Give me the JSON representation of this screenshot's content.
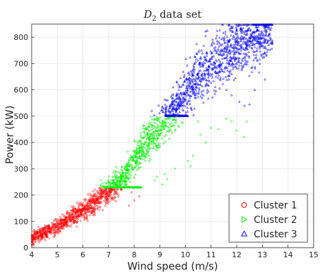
{
  "chart_data": {
    "type": "scatter",
    "title": "D2 data set",
    "title_main": "D",
    "title_sub": "2",
    "title_rest": " data set",
    "xlabel": "Wind speed (m/s)",
    "ylabel": "Power (kW)",
    "xlim": [
      4,
      15
    ],
    "ylim": [
      0,
      850
    ],
    "xticks": [
      4,
      5,
      6,
      7,
      8,
      9,
      10,
      11,
      12,
      13,
      14,
      15
    ],
    "yticks": [
      0,
      100,
      200,
      300,
      400,
      500,
      600,
      700,
      800
    ],
    "grid": true,
    "legend_position": "bottom-right",
    "power_curve_approx": {
      "x": [
        4.0,
        5.0,
        6.0,
        7.0,
        7.5,
        8.0,
        8.5,
        9.0,
        9.5,
        10.0,
        11.0,
        12.0,
        13.0,
        13.4
      ],
      "y": [
        35,
        80,
        140,
        215,
        260,
        330,
        400,
        455,
        520,
        590,
        700,
        770,
        825,
        840
      ]
    },
    "series": [
      {
        "name": "Cluster 1",
        "marker": "circle",
        "color": "#ff0000",
        "x_range": [
          4,
          8.3
        ],
        "y_range": [
          0,
          228
        ],
        "outliers": [
          [
            7.9,
            210
          ],
          [
            8.2,
            195
          ],
          [
            8.0,
            180
          ],
          [
            7.8,
            160
          ]
        ]
      },
      {
        "name": "Cluster 2",
        "marker": "triangle-right",
        "color": "#00ee00",
        "x_range": [
          6.8,
          10.2
        ],
        "y_range": [
          228,
          500
        ],
        "outliers": [
          [
            8.8,
            255
          ],
          [
            9.1,
            240
          ],
          [
            9.2,
            280
          ],
          [
            9.6,
            300
          ],
          [
            9.3,
            260
          ],
          [
            8.9,
            270
          ],
          [
            10.1,
            330
          ],
          [
            10.2,
            310
          ],
          [
            11.3,
            450
          ],
          [
            11.6,
            490
          ],
          [
            11.8,
            480
          ],
          [
            12.0,
            445
          ],
          [
            12.4,
            480
          ],
          [
            11.0,
            455
          ],
          [
            10.6,
            430
          ],
          [
            10.8,
            400
          ],
          [
            10.5,
            480
          ],
          [
            10.3,
            350
          ],
          [
            12.3,
            420
          ]
        ]
      },
      {
        "name": "Cluster 3",
        "marker": "triangle-up",
        "color": "#0000ff",
        "x_range": [
          9.2,
          13.5
        ],
        "y_range": [
          500,
          850
        ],
        "outliers": [
          [
            12.1,
            555
          ],
          [
            12.5,
            545
          ],
          [
            12.7,
            600
          ],
          [
            13.1,
            640
          ],
          [
            12.9,
            700
          ],
          [
            13.1,
            760
          ],
          [
            11.8,
            580
          ],
          [
            12.3,
            540
          ],
          [
            11.6,
            600
          ]
        ]
      }
    ]
  }
}
